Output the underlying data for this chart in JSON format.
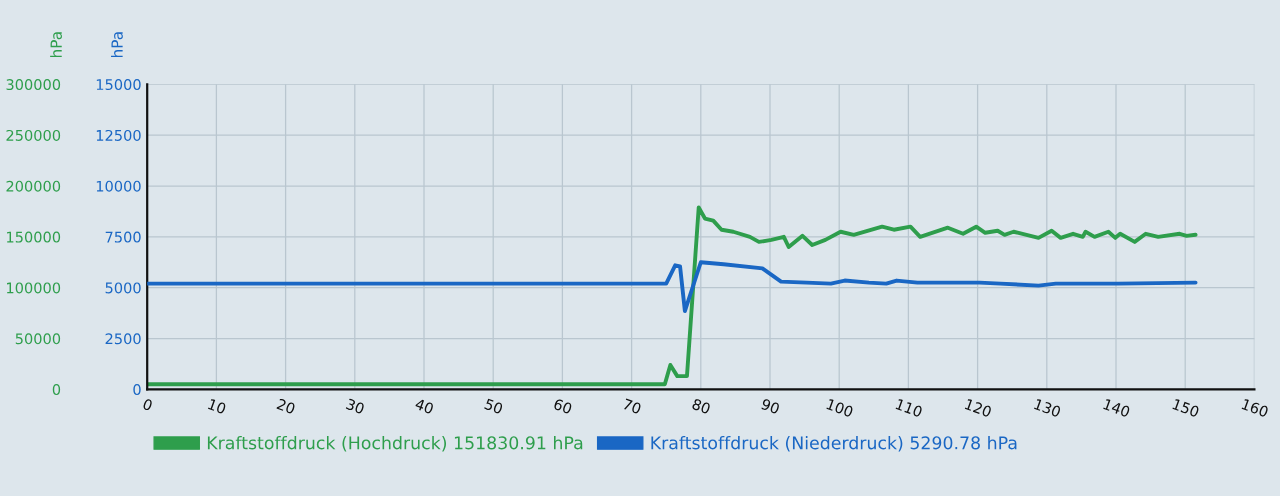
{
  "chart_data": {
    "type": "line",
    "series": [
      {
        "name": "Kraftstoffdruck (Hochdruck) 151830.91 hPa",
        "color": "#2e9e4c",
        "axis": "y",
        "x": [
          0,
          74.8,
          75.6,
          76.6,
          78.0,
          79.7,
          80.6,
          81.8,
          83.0,
          84.7,
          87.1,
          88.4,
          90.2,
          92.0,
          92.7,
          94.7,
          96.1,
          98.0,
          100.2,
          102.1,
          106.2,
          107.9,
          110.3,
          111.7,
          115.7,
          117.9,
          119.8,
          121.1,
          122.9,
          123.9,
          125.2,
          128.8,
          130.7,
          132.0,
          133.8,
          135.2,
          135.6,
          136.9,
          138.9,
          139.9,
          140.6,
          142.7,
          144.3,
          146.1,
          149.2,
          150.2,
          151.5
        ],
        "values": [
          5000,
          5000,
          24000,
          13000,
          13000,
          179000,
          168000,
          166000,
          157000,
          155000,
          150000,
          145000,
          147000,
          150000,
          140000,
          151000,
          142000,
          147000,
          155000,
          152000,
          160000,
          157000,
          160000,
          150000,
          159000,
          153000,
          160000,
          154000,
          156000,
          152000,
          155000,
          149000,
          156000,
          149000,
          153000,
          150000,
          155000,
          150000,
          155000,
          149000,
          153000,
          145000,
          153000,
          150000,
          153000,
          151000,
          152000
        ]
      },
      {
        "name": "Kraftstoffdruck (Niederdruck) 5290.78 hPa",
        "color": "#1a67c4",
        "axis": "y2",
        "x": [
          0,
          75.0,
          76.3,
          77.0,
          77.7,
          80.0,
          83.3,
          88.9,
          91.6,
          95.3,
          98.8,
          100.8,
          104.3,
          106.8,
          108.3,
          111.3,
          120.3,
          123.3,
          128.8,
          131.3,
          140.3,
          151.5
        ],
        "values": [
          5200,
          5200,
          6100,
          6050,
          3850,
          6250,
          6150,
          5950,
          5300,
          5250,
          5200,
          5350,
          5250,
          5200,
          5350,
          5250,
          5250,
          5200,
          5100,
          5200,
          5200,
          5250
        ]
      }
    ],
    "xlim": [
      0,
      160
    ],
    "xticks": [
      0,
      10,
      20,
      30,
      40,
      50,
      60,
      70,
      80,
      90,
      100,
      110,
      120,
      130,
      140,
      150,
      160
    ],
    "ylim": [
      0,
      300000
    ],
    "yticks": [
      0,
      50000,
      100000,
      150000,
      200000,
      250000,
      300000
    ],
    "y2lim": [
      0,
      15000
    ],
    "y2ticks": [
      0,
      2500,
      5000,
      7500,
      10000,
      12500,
      15000
    ],
    "ylabel": "hPa",
    "y2label": "hPa",
    "grid": true,
    "legend": "bottom"
  }
}
